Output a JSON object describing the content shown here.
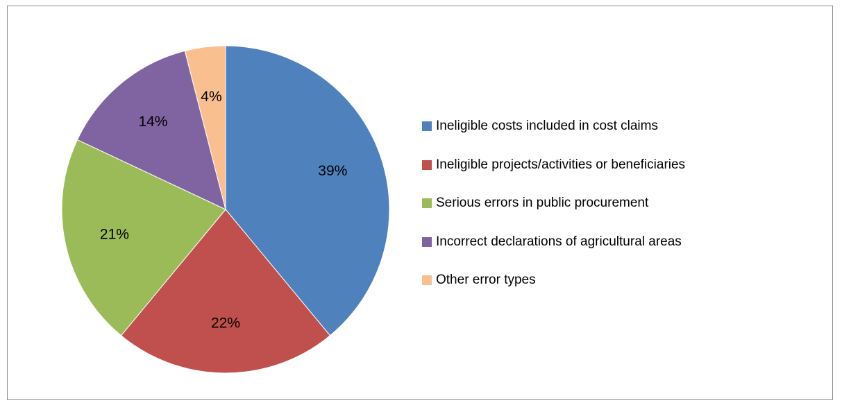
{
  "chart_data": {
    "type": "pie",
    "slices": [
      {
        "label": "Ineligible costs included in cost claims",
        "value": 39,
        "data_label": "39%",
        "color": "#4F81BD"
      },
      {
        "label": "Ineligible projects/activities or beneficiaries",
        "value": 22,
        "data_label": "22%",
        "color": "#C0504D"
      },
      {
        "label": "Serious errors in public procurement",
        "value": 21,
        "data_label": "21%",
        "color": "#9BBB59"
      },
      {
        "label": "Incorrect declarations of agricultural areas",
        "value": 14,
        "data_label": "14%",
        "color": "#8064A2"
      },
      {
        "label": "Other error types",
        "value": 4,
        "data_label": "4%",
        "color": "#F9BF8F"
      }
    ],
    "start_angle": "12 o'clock",
    "direction": "clockwise",
    "legend_position": "right"
  }
}
